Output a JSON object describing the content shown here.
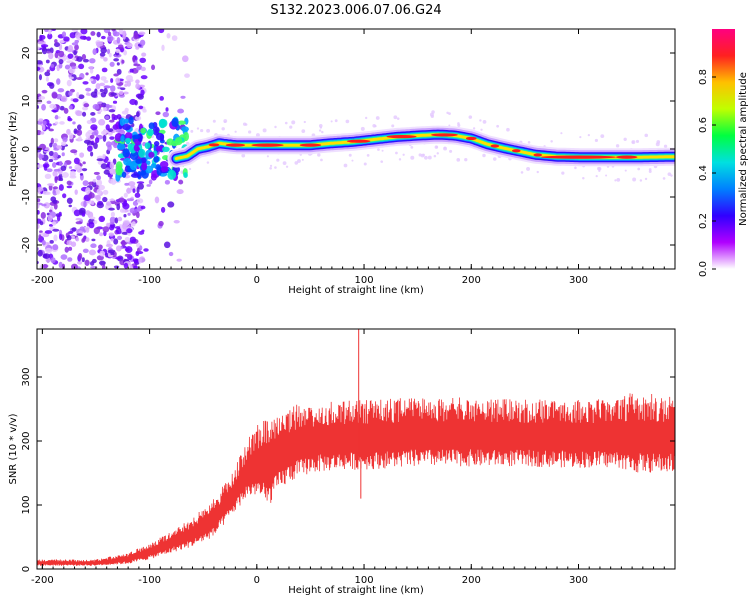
{
  "title": "S132.2023.006.07.06.G24",
  "chart_data": [
    {
      "type": "heatmap",
      "xlabel": "Height of straight line (km)",
      "ylabel": "Frequency (Hz)",
      "xlim": [
        -205,
        390
      ],
      "ylim": [
        -25,
        25
      ],
      "xticks": [
        -200,
        -100,
        0,
        100,
        200,
        300
      ],
      "yticks": [
        -20,
        -10,
        0,
        10,
        20
      ],
      "colorbar": {
        "label": "Normalized spectral amplitude",
        "range": [
          0,
          1
        ],
        "ticks": [
          "0.0",
          "0.2",
          "0.4",
          "0.6",
          "0.8"
        ],
        "colormap": [
          "#ffffff",
          "#b000ff",
          "#3000ff",
          "#0080ff",
          "#00e0e0",
          "#00ff40",
          "#c0ff00",
          "#ffc000",
          "#ff2020",
          "#ff0080"
        ]
      },
      "ridge": {
        "x": [
          -75,
          -65,
          -55,
          -45,
          -35,
          -20,
          0,
          20,
          35,
          50,
          70,
          90,
          110,
          130,
          150,
          170,
          185,
          200,
          215,
          230,
          245,
          260,
          280,
          300,
          320,
          340,
          360,
          390
        ],
        "y": [
          -2,
          -1.5,
          0,
          0.5,
          1.2,
          0.8,
          0.8,
          0.8,
          0.8,
          0.8,
          1.2,
          1.5,
          2.0,
          2.5,
          2.8,
          3.0,
          2.8,
          2.2,
          1.0,
          0.2,
          -0.5,
          -1.2,
          -1.6,
          -1.7,
          -1.7,
          -1.7,
          -1.7,
          -1.6
        ]
      }
    },
    {
      "type": "line",
      "xlabel": "Height of straight line (km)",
      "ylabel": "SNR (10 * v/v)",
      "xlim": [
        -205,
        390
      ],
      "ylim": [
        0,
        375
      ],
      "xticks": [
        -200,
        -100,
        0,
        100,
        200,
        300
      ],
      "yticks": [
        0,
        100,
        200,
        300
      ],
      "color": "#ee3333",
      "envelope": {
        "x": [
          -205,
          -150,
          -120,
          -100,
          -80,
          -60,
          -40,
          -20,
          -10,
          0,
          10,
          20,
          30,
          50,
          80,
          100,
          150,
          200,
          250,
          300,
          340,
          345,
          390
        ],
        "low": [
          5,
          5,
          8,
          15,
          25,
          35,
          50,
          90,
          110,
          115,
          95,
          120,
          135,
          150,
          155,
          155,
          160,
          160,
          160,
          158,
          158,
          150,
          150
        ],
        "high": [
          15,
          15,
          25,
          40,
          60,
          80,
          110,
          160,
          200,
          225,
          235,
          245,
          255,
          260,
          265,
          265,
          268,
          268,
          265,
          265,
          265,
          275,
          272
        ]
      },
      "spikes": [
        {
          "x": 95,
          "y": 375
        },
        {
          "x": 97,
          "y": 110
        }
      ]
    }
  ]
}
